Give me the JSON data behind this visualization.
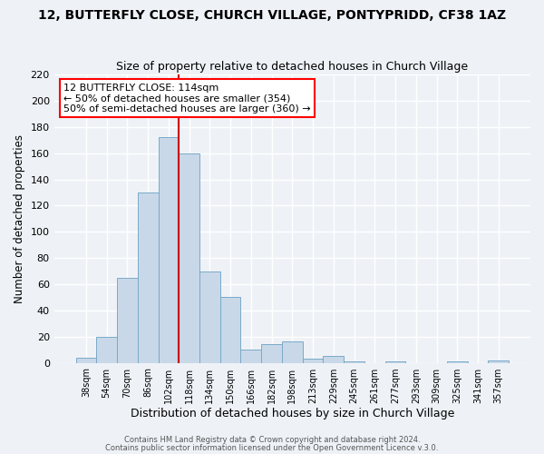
{
  "title": "12, BUTTERFLY CLOSE, CHURCH VILLAGE, PONTYPRIDD, CF38 1AZ",
  "subtitle": "Size of property relative to detached houses in Church Village",
  "xlabel": "Distribution of detached houses by size in Church Village",
  "ylabel": "Number of detached properties",
  "bin_labels": [
    "38sqm",
    "54sqm",
    "70sqm",
    "86sqm",
    "102sqm",
    "118sqm",
    "134sqm",
    "150sqm",
    "166sqm",
    "182sqm",
    "198sqm",
    "213sqm",
    "229sqm",
    "245sqm",
    "261sqm",
    "277sqm",
    "293sqm",
    "309sqm",
    "325sqm",
    "341sqm",
    "357sqm"
  ],
  "bar_heights": [
    4,
    20,
    65,
    130,
    172,
    160,
    70,
    50,
    10,
    14,
    16,
    3,
    5,
    1,
    0,
    1,
    0,
    0,
    1,
    0,
    2
  ],
  "bar_color": "#c8d8e8",
  "bar_edge_color": "#7aaac8",
  "red_line_bin_index": 5,
  "ylim": [
    0,
    220
  ],
  "yticks": [
    0,
    20,
    40,
    60,
    80,
    100,
    120,
    140,
    160,
    180,
    200,
    220
  ],
  "annotation_title": "12 BUTTERFLY CLOSE: 114sqm",
  "annotation_line1": "← 50% of detached houses are smaller (354)",
  "annotation_line2": "50% of semi-detached houses are larger (360) →",
  "footer1": "Contains HM Land Registry data © Crown copyright and database right 2024.",
  "footer2": "Contains public sector information licensed under the Open Government Licence v.3.0.",
  "background_color": "#eef2f7",
  "grid_color": "#ffffff",
  "title_fontsize": 10,
  "subtitle_fontsize": 9,
  "xlabel_fontsize": 9,
  "ylabel_fontsize": 8.5
}
